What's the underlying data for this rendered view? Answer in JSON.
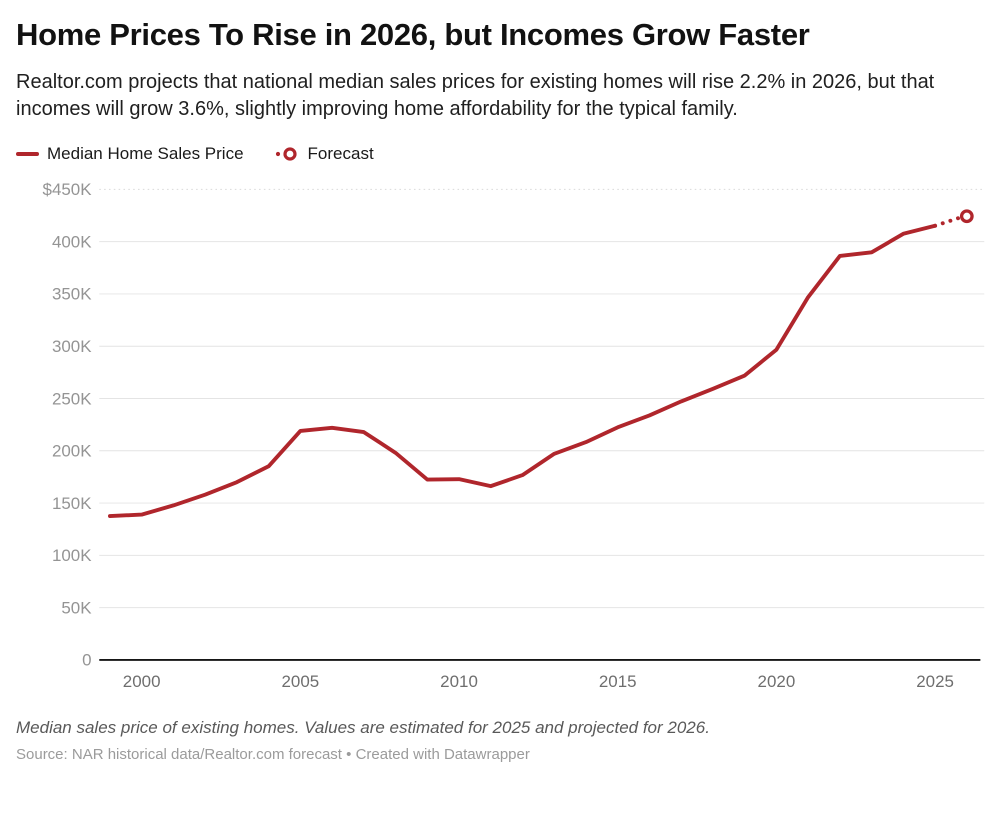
{
  "header": {
    "title": "Home Prices To Rise in 2026, but Incomes Grow Faster",
    "subtitle": "Realtor.com projects that national median sales prices for existing homes will rise 2.2% in 2026, but that incomes will grow 3.6%, slightly improving home affordability for the typical family."
  },
  "legend": {
    "items": [
      {
        "label": "Median Home Sales Price",
        "glyph": "line-swatch",
        "color": "#b0262c"
      },
      {
        "label": "Forecast",
        "glyph": "dot-and-open-circle",
        "color": "#b0262c"
      }
    ]
  },
  "footer": {
    "note": "Median sales price of existing homes. Values are estimated for 2025 and projected for 2026.",
    "source": "Source: NAR historical data/Realtor.com forecast",
    "separator": "•",
    "credit": "Created with Datawrapper"
  },
  "chart_data": {
    "type": "line",
    "title": "Median Home Sales Price",
    "x": [
      1999,
      2000,
      2001,
      2002,
      2003,
      2004,
      2005,
      2006,
      2007,
      2008,
      2009,
      2010,
      2011,
      2012,
      2013,
      2014,
      2015,
      2016,
      2017,
      2018,
      2019,
      2020,
      2021,
      2022,
      2023,
      2024,
      2025,
      2026
    ],
    "series": [
      {
        "name": "Median Home Sales Price",
        "values": [
          137600,
          139000,
          147800,
          158100,
          170000,
          185200,
          219000,
          221900,
          217900,
          198100,
          172500,
          172900,
          166200,
          176800,
          197100,
          208300,
          222400,
          233800,
          247200,
          259300,
          271900,
          296700,
          346900,
          386300,
          389800,
          407500,
          415200,
          424300
        ]
      }
    ],
    "forecast": {
      "solid_until": 2025,
      "marker_year": 2026,
      "marker": "open-circle",
      "style": "dotted"
    },
    "ylim": [
      0,
      450000
    ],
    "xlim": [
      1999,
      2026.6
    ],
    "y_ticks": [
      {
        "v": 450000,
        "label": "$450K"
      },
      {
        "v": 400000,
        "label": "400K"
      },
      {
        "v": 350000,
        "label": "350K"
      },
      {
        "v": 300000,
        "label": "300K"
      },
      {
        "v": 250000,
        "label": "250K"
      },
      {
        "v": 200000,
        "label": "200K"
      },
      {
        "v": 150000,
        "label": "150K"
      },
      {
        "v": 100000,
        "label": "100K"
      },
      {
        "v": 50000,
        "label": "50K"
      },
      {
        "v": 0,
        "label": "0"
      }
    ],
    "x_ticks": [
      2000,
      2005,
      2010,
      2015,
      2020,
      2025
    ],
    "grid": true,
    "legend_position": "top-left",
    "line_color": "#b0262c",
    "grid_color": "#e4e4e4",
    "top_grid_color": "#d9d9d9",
    "baseline_color": "#161616",
    "y_label_color": "#949494",
    "x_label_color": "#6e6e6e"
  }
}
